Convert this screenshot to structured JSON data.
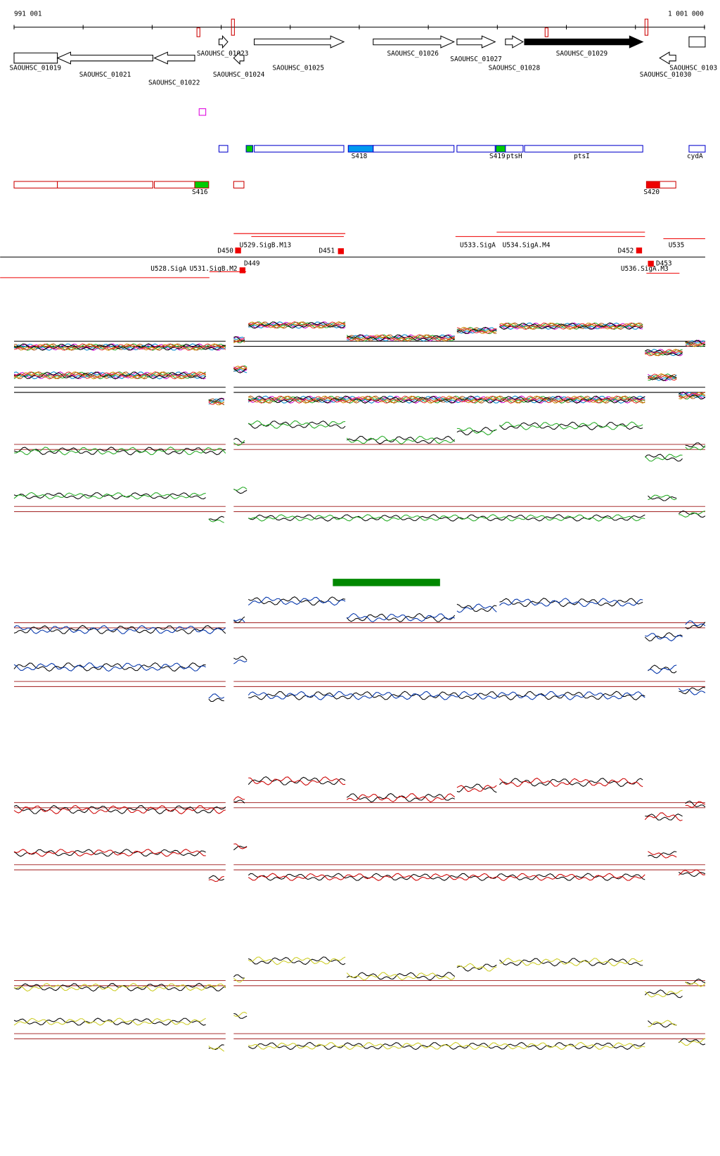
{
  "ruler": {
    "start": "991 001",
    "end": "1 001 000"
  },
  "genes": [
    "SAOUHSC_01019",
    "SAOUHSC_01021",
    "SAOUHSC_01022",
    "SAOUHSC_01023",
    "SAOUHSC_01024",
    "SAOUHSC_01025",
    "SAOUHSC_01026",
    "SAOUHSC_01027",
    "SAOUHSC_01028",
    "SAOUHSC_01029",
    "SAOUHSC_01030",
    "SAOUHSC_0103"
  ],
  "features": [
    "S418",
    "S419",
    "ptsH",
    "ptsI",
    "cydA"
  ],
  "srnas": [
    "S416",
    "S420"
  ],
  "regions": [
    "D450",
    "U529.SigB.M13",
    "D451",
    "U533.SigA",
    "U534.SigA.M4",
    "D452",
    "U535",
    "U528.SigA",
    "U531.SigB.M2",
    "D449",
    "U536.SigA.M3",
    "D453"
  ]
}
